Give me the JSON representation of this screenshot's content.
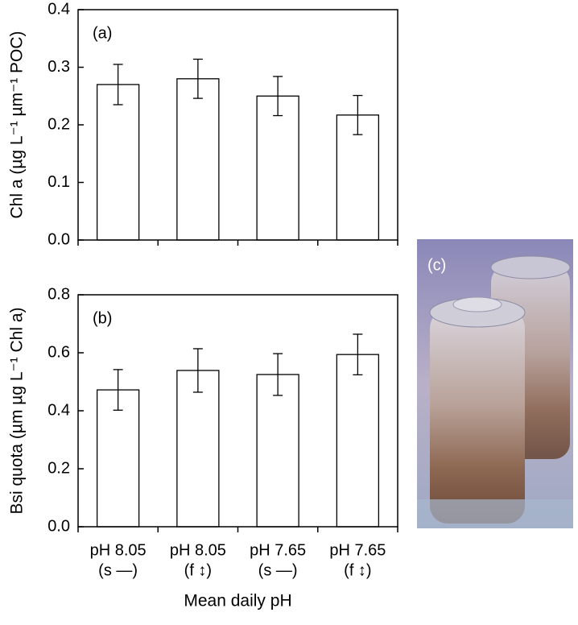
{
  "chart_data": [
    {
      "type": "bar",
      "panel_label": "(a)",
      "ylabel": "Chl a (µg L⁻¹ µm⁻¹ POC)",
      "categories": [
        [
          "pH 8.05",
          "(s —)"
        ],
        [
          "pH 8.05",
          "(f ↕)"
        ],
        [
          "pH 7.65",
          "(s —)"
        ],
        [
          "pH 7.65",
          "(f ↕)"
        ]
      ],
      "values": [
        0.27,
        0.28,
        0.25,
        0.217
      ],
      "errors": [
        0.035,
        0.034,
        0.034,
        0.034
      ],
      "color": "#ffffff",
      "ylim": [
        0,
        0.4
      ],
      "yticks": [
        {
          "value": 0,
          "label": "0.0"
        },
        0.1,
        0.2,
        0.3,
        0.4
      ]
    },
    {
      "type": "bar",
      "panel_label": "(b)",
      "ylabel": "Bsi quota (µm µg L⁻¹ Chl a)",
      "xlabel": "Mean daily pH",
      "categories": [
        [
          "pH 8.05",
          "(s —)"
        ],
        [
          "pH 8.05",
          "(f ↕)"
        ],
        [
          "pH 7.65",
          "(s —)"
        ],
        [
          "pH 7.65",
          "(f ↕)"
        ]
      ],
      "values": [
        0.472,
        0.539,
        0.525,
        0.594
      ],
      "errors": [
        0.07,
        0.075,
        0.072,
        0.07
      ],
      "color": "#ffffff",
      "ylim": [
        0,
        0.8
      ],
      "yticks": [
        {
          "value": 0,
          "label": "0.0"
        },
        0.2,
        0.4,
        0.6,
        0.8
      ]
    }
  ],
  "photo": {
    "label": "(c)"
  }
}
